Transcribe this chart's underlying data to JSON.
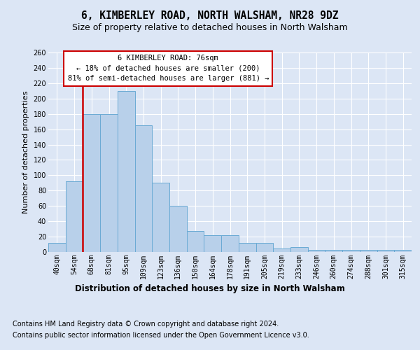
{
  "title": "6, KIMBERLEY ROAD, NORTH WALSHAM, NR28 9DZ",
  "subtitle": "Size of property relative to detached houses in North Walsham",
  "xlabel": "Distribution of detached houses by size in North Walsham",
  "ylabel": "Number of detached properties",
  "categories": [
    "40sqm",
    "54sqm",
    "68sqm",
    "81sqm",
    "95sqm",
    "109sqm",
    "123sqm",
    "136sqm",
    "150sqm",
    "164sqm",
    "178sqm",
    "191sqm",
    "205sqm",
    "219sqm",
    "233sqm",
    "246sqm",
    "260sqm",
    "274sqm",
    "288sqm",
    "301sqm",
    "315sqm"
  ],
  "values": [
    12,
    92,
    180,
    180,
    210,
    165,
    90,
    60,
    27,
    22,
    22,
    12,
    12,
    5,
    6,
    3,
    3,
    3,
    3,
    3,
    3
  ],
  "bar_color": "#b8d0ea",
  "bar_edge_color": "#6aaad4",
  "vline_x_index": 1.5,
  "vline_color": "#cc0000",
  "annotation_line1": "6 KIMBERLEY ROAD: 76sqm",
  "annotation_line2": "← 18% of detached houses are smaller (200)",
  "annotation_line3": "81% of semi-detached houses are larger (881) →",
  "annotation_box_facecolor": "white",
  "annotation_box_edgecolor": "#cc0000",
  "ylim": [
    0,
    260
  ],
  "yticks": [
    0,
    20,
    40,
    60,
    80,
    100,
    120,
    140,
    160,
    180,
    200,
    220,
    240,
    260
  ],
  "bg_color": "#dce6f5",
  "grid_color": "white",
  "title_fontsize": 10.5,
  "subtitle_fontsize": 9,
  "xlabel_fontsize": 8.5,
  "ylabel_fontsize": 8,
  "tick_fontsize": 7,
  "annotation_fontsize": 7.5,
  "footer_fontsize": 7,
  "footer1": "Contains HM Land Registry data © Crown copyright and database right 2024.",
  "footer2": "Contains public sector information licensed under the Open Government Licence v3.0."
}
